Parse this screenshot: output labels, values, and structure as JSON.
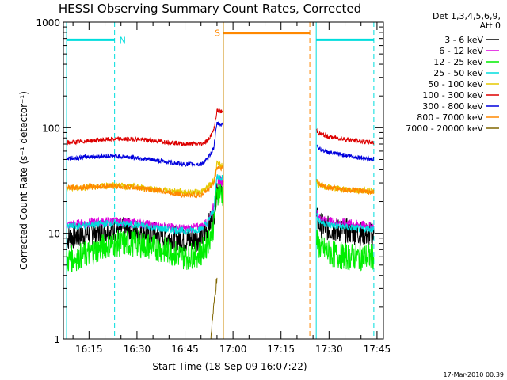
{
  "chart_data": {
    "type": "line",
    "title": "HESSI Observing Summary Count Rates, Corrected",
    "xlabel": "Start Time (18-Sep-09 16:07:22)",
    "ylabel": "Corrected Count Rate (s⁻¹ detector⁻¹)",
    "yscale": "log",
    "ylim": [
      1,
      1000
    ],
    "xlim": [
      "16:07",
      "17:47"
    ],
    "x_tick_labels": [
      "16:15",
      "16:30",
      "16:45",
      "17:00",
      "17:15",
      "17:30",
      "17:45"
    ],
    "y_tick_labels": [
      "1",
      "10",
      "100",
      "1000"
    ],
    "legend_header": [
      "Det 1,3,4,5,6,9,",
      "Att 0"
    ],
    "legend_position": "right",
    "footer": "17-Mar-2010 00:39",
    "data_gap": [
      "16:57",
      "17:26"
    ],
    "series": [
      {
        "name": "3 - 6 keV",
        "color": "#000000",
        "x": [
          "16:08",
          "16:15",
          "16:22",
          "16:30",
          "16:38",
          "16:45",
          "16:50",
          "16:52",
          "16:54",
          "16:55",
          "17:26",
          "17:27",
          "17:30",
          "17:35",
          "17:40",
          "17:44"
        ],
        "y": [
          9,
          10,
          11,
          10.5,
          9.5,
          8.5,
          9,
          11,
          15,
          28,
          14,
          12,
          11,
          10.5,
          10,
          9.5
        ]
      },
      {
        "name": "6 - 12 keV",
        "color": "#dd00dd",
        "x": [
          "16:08",
          "16:15",
          "16:22",
          "16:30",
          "16:38",
          "16:45",
          "16:50",
          "16:52",
          "16:54",
          "16:55",
          "17:26",
          "17:27",
          "17:30",
          "17:35",
          "17:40",
          "17:44"
        ],
        "y": [
          12,
          12.5,
          13,
          12.5,
          11.5,
          11,
          11.5,
          13,
          18,
          32,
          16,
          14,
          13,
          12.5,
          12,
          11.5
        ]
      },
      {
        "name": "12 - 25 keV",
        "color": "#00ee00",
        "x": [
          "16:08",
          "16:15",
          "16:22",
          "16:30",
          "16:38",
          "16:45",
          "16:50",
          "16:52",
          "16:54",
          "16:55",
          "17:26",
          "17:27",
          "17:30",
          "17:35",
          "17:40",
          "17:44"
        ],
        "y": [
          5.5,
          6.5,
          8,
          8,
          7,
          6,
          6.5,
          8,
          12,
          25,
          9,
          7.5,
          6.5,
          6,
          6,
          6
        ]
      },
      {
        "name": "25 - 50 keV",
        "color": "#00dddd",
        "x": [
          "16:08",
          "16:15",
          "16:22",
          "16:30",
          "16:38",
          "16:45",
          "16:50",
          "16:52",
          "16:54",
          "16:55",
          "17:26",
          "17:27",
          "17:30",
          "17:35",
          "17:40",
          "17:44"
        ],
        "y": [
          11.5,
          12,
          12.5,
          12,
          11,
          10.5,
          11,
          12.5,
          17,
          35,
          15,
          13,
          12,
          11.5,
          11,
          11
        ]
      },
      {
        "name": "50 - 100 keV",
        "color": "#e6c800",
        "x": [
          "16:08",
          "16:15",
          "16:22",
          "16:30",
          "16:38",
          "16:45",
          "16:50",
          "16:52",
          "16:54",
          "16:55",
          "17:26",
          "17:27",
          "17:30",
          "17:35",
          "17:40",
          "17:44"
        ],
        "y": [
          26.5,
          27.5,
          28.5,
          27.5,
          25.5,
          24.5,
          24.5,
          27,
          32,
          45,
          31,
          28,
          27,
          26,
          25.5,
          25
        ]
      },
      {
        "name": "100 - 300 keV",
        "color": "#dd0000",
        "x": [
          "16:08",
          "16:15",
          "16:22",
          "16:30",
          "16:38",
          "16:45",
          "16:50",
          "16:52",
          "16:54",
          "16:55",
          "17:26",
          "17:27",
          "17:30",
          "17:35",
          "17:40",
          "17:44"
        ],
        "y": [
          72,
          75,
          78,
          78,
          74,
          70,
          70,
          75,
          95,
          145,
          95,
          88,
          82,
          78,
          74,
          72
        ]
      },
      {
        "name": "300 - 800 keV",
        "color": "#0000dd",
        "x": [
          "16:08",
          "16:15",
          "16:22",
          "16:30",
          "16:38",
          "16:45",
          "16:50",
          "16:52",
          "16:54",
          "16:55",
          "17:26",
          "17:27",
          "17:30",
          "17:35",
          "17:40",
          "17:44"
        ],
        "y": [
          51,
          53,
          54,
          52,
          48,
          45,
          45,
          50,
          65,
          110,
          70,
          63,
          58,
          55,
          52,
          50
        ]
      },
      {
        "name": "800 - 7000 keV",
        "color": "#ff8800",
        "x": [
          "16:08",
          "16:15",
          "16:22",
          "16:30",
          "16:38",
          "16:45",
          "16:50",
          "16:52",
          "16:54",
          "16:55",
          "17:26",
          "17:27",
          "17:30",
          "17:35",
          "17:40",
          "17:44"
        ],
        "y": [
          27,
          27.5,
          28,
          27,
          25,
          23,
          23,
          25.5,
          30,
          42,
          33,
          29,
          27,
          26,
          25,
          24.5
        ]
      },
      {
        "name": "7000 - 20000 keV",
        "color": "#806600",
        "x": [
          "16:53",
          "16:54",
          "16:55"
        ],
        "y": [
          1,
          2,
          3.8
        ]
      }
    ],
    "markers": [
      {
        "label": "N",
        "color": "#00dddd",
        "start": "16:08",
        "end": "16:23",
        "level": 680
      },
      {
        "label": "",
        "color": "#00dddd",
        "start": "17:26",
        "end": "17:44",
        "level": 680
      },
      {
        "label": "S",
        "color": "#ff8800",
        "start": "16:57",
        "end": "17:24",
        "level": 790
      }
    ],
    "vertical_lines": [
      {
        "x": "16:08",
        "color": "#00dddd",
        "dash": false
      },
      {
        "x": "16:23",
        "color": "#00dddd",
        "dash": true
      },
      {
        "x": "16:57",
        "color": "#cc8800",
        "dash": false
      },
      {
        "x": "17:24",
        "color": "#ff8800",
        "dash": true
      },
      {
        "x": "17:26",
        "color": "#00dddd",
        "dash": false
      },
      {
        "x": "17:44",
        "color": "#00dddd",
        "dash": true
      }
    ]
  }
}
